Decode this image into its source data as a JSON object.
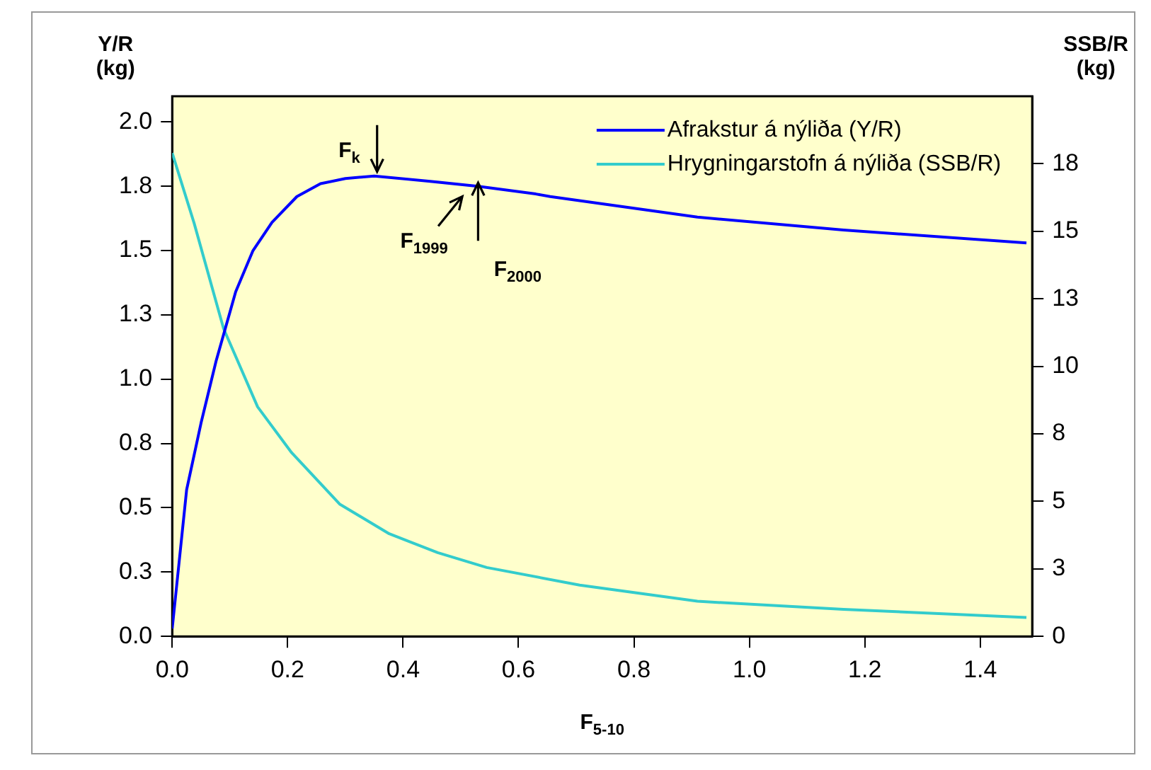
{
  "chart_data": {
    "type": "line",
    "xlabel": "F$_{5-10}$",
    "ylabel": "Y/R (kg)",
    "y2label": "SSB/R (kg)",
    "xlim": [
      0,
      1.49
    ],
    "xticks": [
      {
        "value": 0,
        "label": "0.0"
      },
      {
        "value": 0.2,
        "label": "0.2"
      },
      {
        "value": 0.4,
        "label": "0.4"
      },
      {
        "value": 0.6,
        "label": "0.6"
      },
      {
        "value": 0.8,
        "label": "0.8"
      },
      {
        "value": 1,
        "label": "1.0"
      },
      {
        "value": 1.2,
        "label": "1.2"
      },
      {
        "value": 1.4,
        "label": "1.4"
      }
    ],
    "ylim": [
      0,
      2.1
    ],
    "yticks": [
      {
        "value": 0,
        "label": "0.0"
      },
      {
        "value": 0.25,
        "label": "0.3"
      },
      {
        "value": 0.5,
        "label": "0.5"
      },
      {
        "value": 0.75,
        "label": "0.8"
      },
      {
        "value": 1,
        "label": "1.0"
      },
      {
        "value": 1.25,
        "label": "1.3"
      },
      {
        "value": 1.5,
        "label": "1.5"
      },
      {
        "value": 1.75,
        "label": "1.8"
      },
      {
        "value": 2,
        "label": "2.0"
      }
    ],
    "y2lim": [
      0,
      20
    ],
    "y2ticks": [
      0,
      {
        "value": 2.5,
        "label": "3"
      },
      5,
      {
        "value": 7.5,
        "label": "8"
      },
      10,
      {
        "value": 12.5,
        "label": "13"
      },
      15,
      {
        "value": 17.5,
        "label": "18"
      }
    ],
    "series": [
      {
        "name": "Afrakstur á nýliða (Y/R)",
        "color": "#0000ff",
        "x": [
          0,
          0.025,
          0.05,
          0.076,
          0.11,
          0.14,
          0.173,
          0.216,
          0.257,
          0.3,
          0.35,
          0.444,
          0.53,
          0.63,
          0.655,
          0.91,
          1.163,
          1.48
        ],
        "values": [
          0.03,
          0.57,
          0.83,
          1.07,
          1.34,
          1.5,
          1.61,
          1.71,
          1.76,
          1.78,
          1.79,
          1.77,
          1.75,
          1.72,
          1.71,
          1.63,
          1.58,
          1.53
        ]
      },
      {
        "name": "Hrygningarstofn á nýliða (SSB/R)",
        "color": "#33cccc",
        "axis": "y2",
        "x": [
          0,
          0.038,
          0.089,
          0.148,
          0.207,
          0.29,
          0.376,
          0.46,
          0.545,
          0.706,
          0.91,
          1.163,
          1.48
        ],
        "values": [
          17.9,
          15.3,
          11.4,
          8.5,
          6.8,
          4.9,
          3.8,
          3.1,
          2.55,
          1.9,
          1.3,
          1.0,
          0.7
        ]
      }
    ],
    "annotations": [
      {
        "text": "F$_{k}$",
        "x": 0.355,
        "y": 1.79
      },
      {
        "text": "F$_{1999}$",
        "x": 0.51,
        "y": 1.76
      },
      {
        "text": "F$_{2000}$",
        "x": 0.53,
        "y": 1.78
      }
    ],
    "legend": "top right",
    "grid": false,
    "marker": "none",
    "line_style": "solid"
  }
}
